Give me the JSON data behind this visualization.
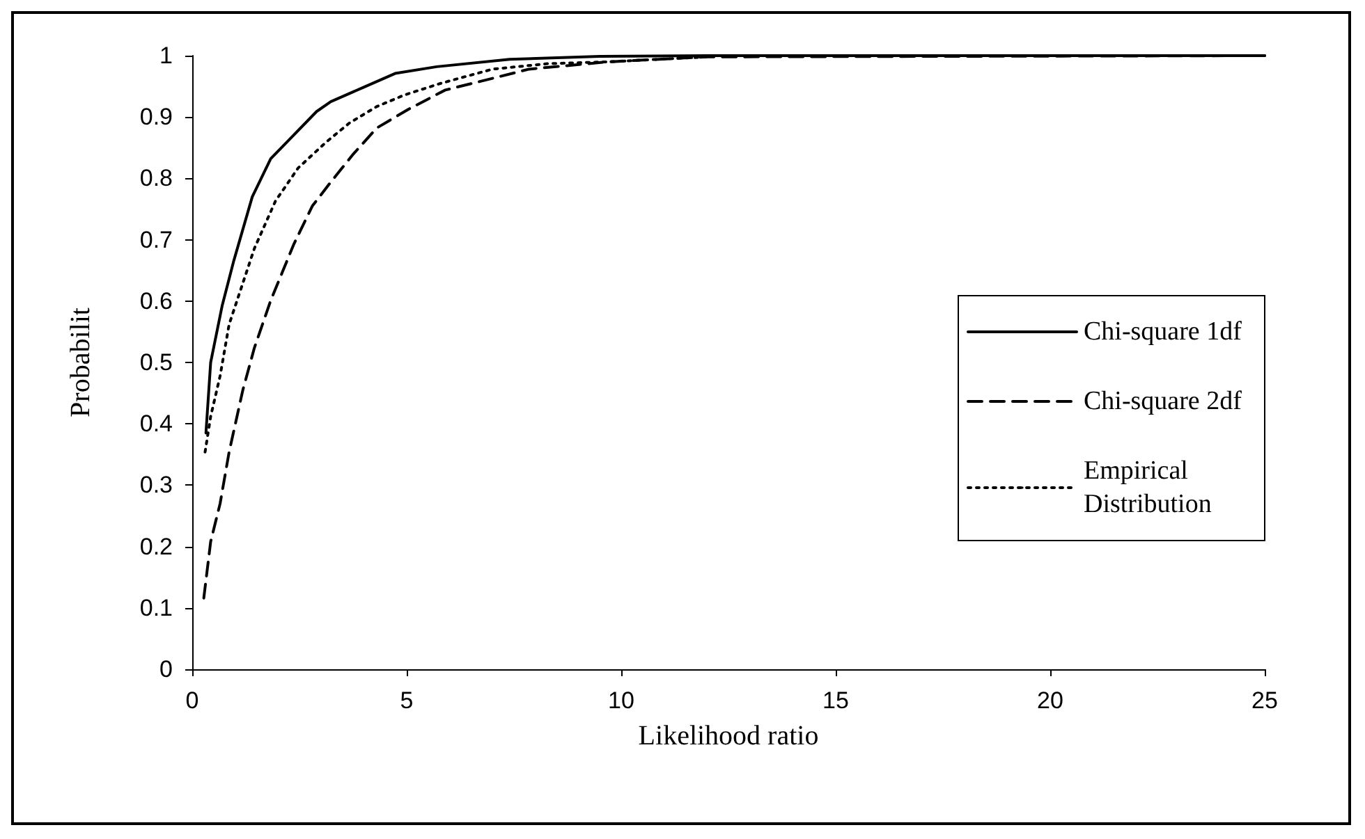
{
  "chart_data": {
    "type": "line",
    "xlabel": "Likelihood ratio",
    "ylabel": "Probabilit",
    "xlim": [
      0,
      25
    ],
    "xticks": [
      0,
      5,
      10,
      15,
      20,
      25
    ],
    "ylim": [
      0,
      1
    ],
    "yticks": [
      0,
      0.1,
      0.2,
      0.3,
      0.4,
      0.5,
      0.6,
      0.7,
      0.8,
      0.9,
      1
    ],
    "grid": false,
    "legend": "right",
    "marker": "none",
    "series": [
      {
        "name": "Chi-square 1df",
        "color": "#000000",
        "line_style": "solid",
        "x": [
          0.32,
          0.43,
          0.7,
          0.97,
          1.4,
          1.83,
          2.26,
          2.9,
          3.23,
          3.98,
          4.73,
          5.7,
          7.4,
          9.5,
          12,
          25
        ],
        "values": [
          0.385,
          0.5,
          0.593,
          0.666,
          0.77,
          0.832,
          0.863,
          0.909,
          0.925,
          0.948,
          0.971,
          0.982,
          0.994,
          0.999,
          1,
          1
        ]
      },
      {
        "name": "Chi-square 2df",
        "color": "#000000",
        "line_style": "dashed",
        "x": [
          0.27,
          0.43,
          0.65,
          0.86,
          1.18,
          1.45,
          1.83,
          2.1,
          2.37,
          2.8,
          3.23,
          3.76,
          4.3,
          5.05,
          5.9,
          7.0,
          7.85,
          9.7,
          12,
          25
        ],
        "values": [
          0.116,
          0.208,
          0.27,
          0.354,
          0.455,
          0.524,
          0.601,
          0.647,
          0.693,
          0.755,
          0.794,
          0.84,
          0.882,
          0.913,
          0.944,
          0.963,
          0.978,
          0.99,
          0.998,
          1
        ]
      },
      {
        "name": "Empirical Distribution",
        "color": "#000000",
        "line_style": "dotted",
        "x": [
          0.3,
          0.43,
          0.65,
          0.86,
          1.45,
          1.94,
          2.47,
          3.12,
          3.66,
          4.3,
          4.95,
          5.8,
          7.0,
          8.3,
          9.7,
          12
        ],
        "values": [
          0.354,
          0.412,
          0.478,
          0.562,
          0.686,
          0.763,
          0.817,
          0.859,
          0.89,
          0.917,
          0.936,
          0.955,
          0.978,
          0.987,
          0.99,
          0.998
        ]
      }
    ]
  }
}
